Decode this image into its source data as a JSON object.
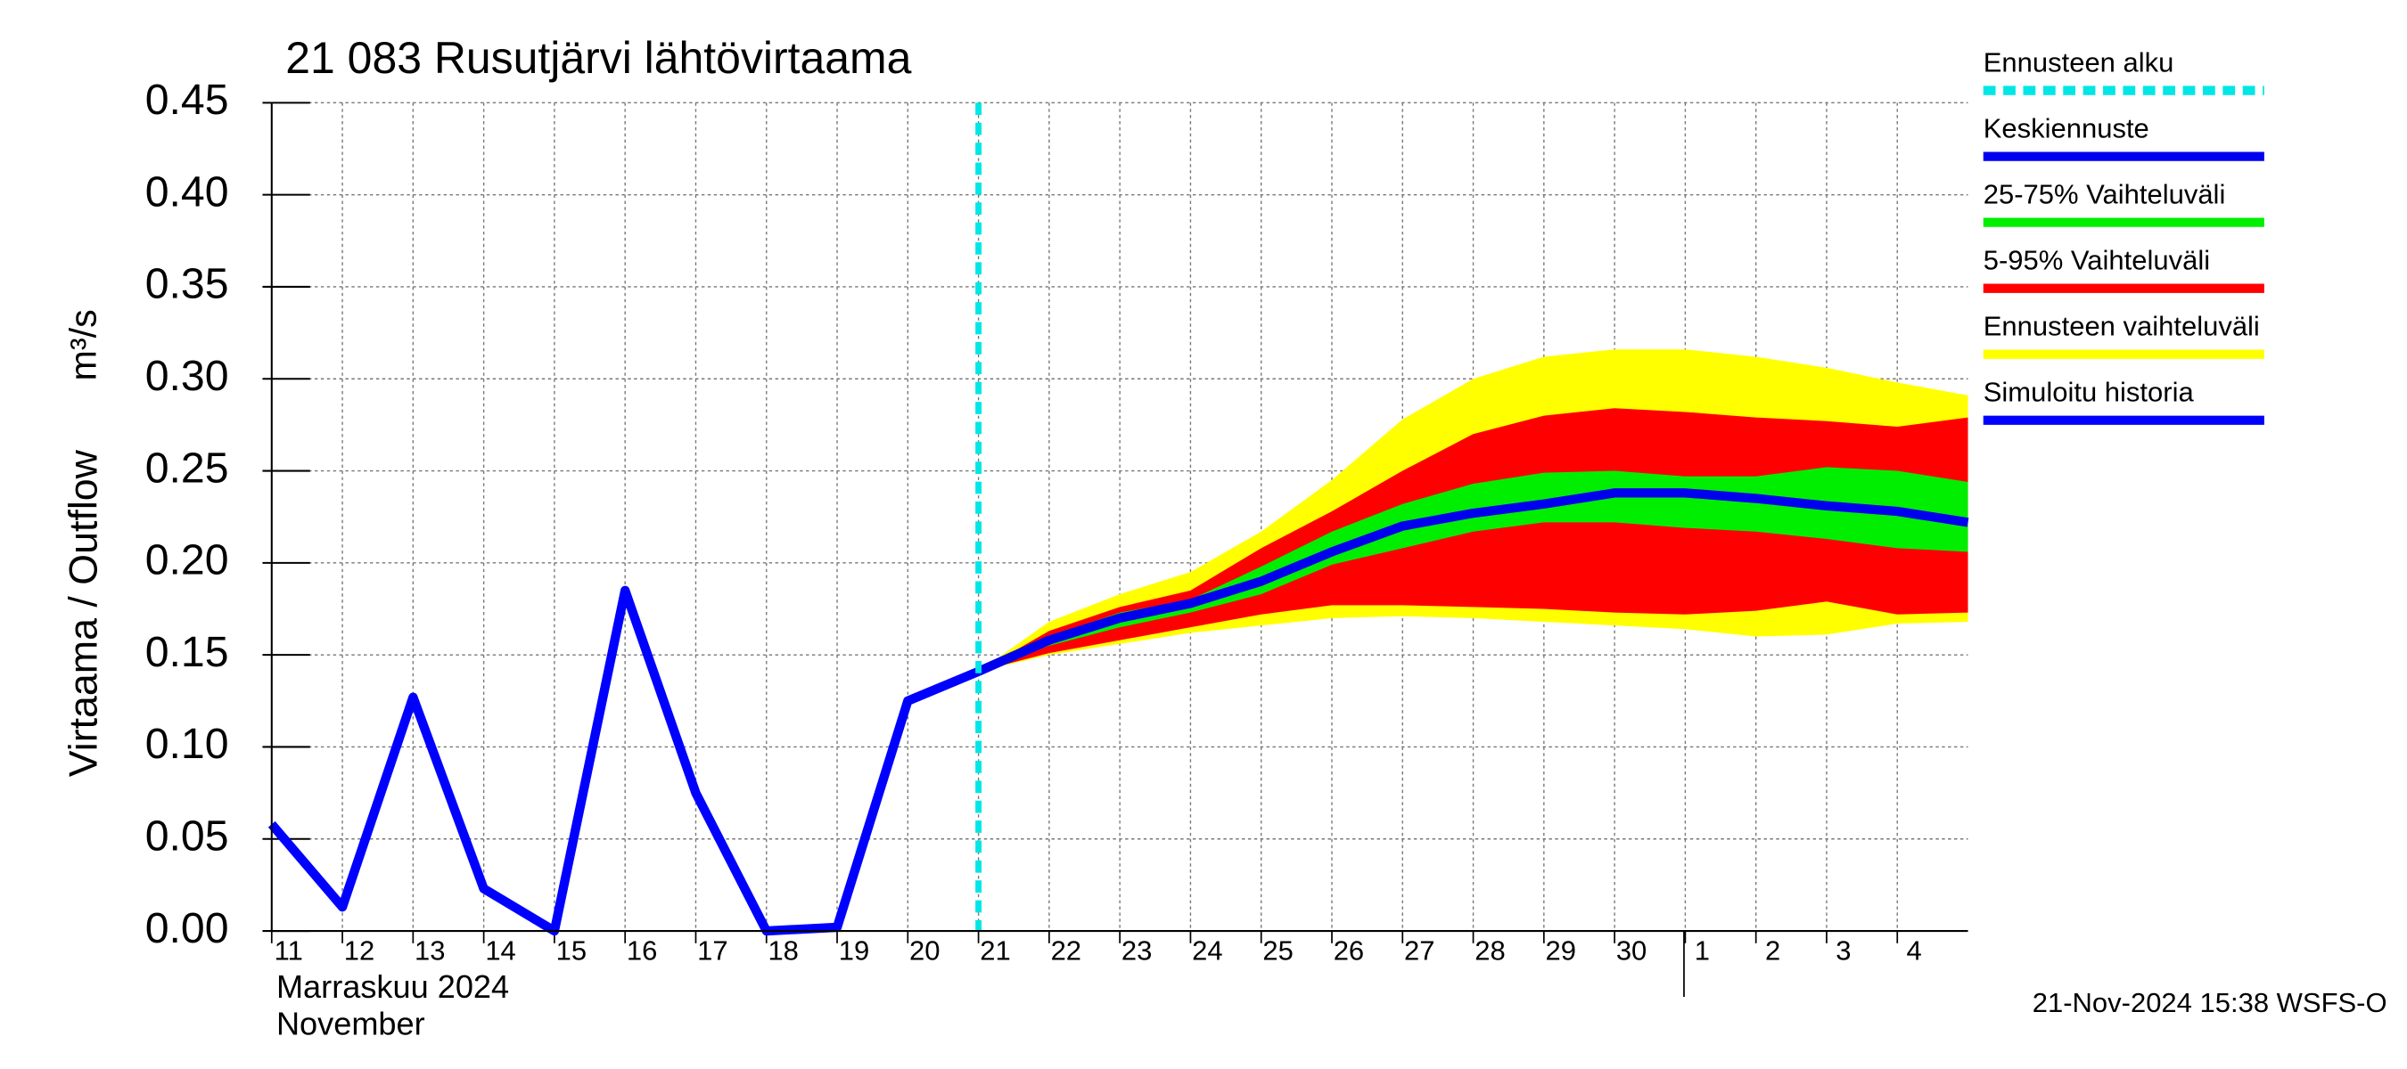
{
  "chart_data": {
    "type": "line",
    "title": "21 083 Rusutjärvi lähtövirtaama",
    "y_label": "Virtaama / Outflow",
    "y_unit": "m³/s",
    "x_label_fi": "Marraskuu 2024",
    "x_label_en": "November",
    "footer": "21-Nov-2024 15:38 WSFS-O",
    "x": [
      "2024-11-11",
      "2024-11-12",
      "2024-11-13",
      "2024-11-14",
      "2024-11-15",
      "2024-11-16",
      "2024-11-17",
      "2024-11-18",
      "2024-11-19",
      "2024-11-20",
      "2024-11-21",
      "2024-11-22",
      "2024-11-23",
      "2024-11-24",
      "2024-11-25",
      "2024-11-26",
      "2024-11-27",
      "2024-11-28",
      "2024-11-29",
      "2024-11-30",
      "2024-12-01",
      "2024-12-02",
      "2024-12-03",
      "2024-12-04",
      "2024-12-05"
    ],
    "xlim": [
      "2024-11-11",
      "2024-12-05"
    ],
    "xticks": [
      {
        "value": "2024-11-11",
        "label": "11"
      },
      {
        "value": "2024-11-12",
        "label": "12"
      },
      {
        "value": "2024-11-13",
        "label": "13"
      },
      {
        "value": "2024-11-14",
        "label": "14"
      },
      {
        "value": "2024-11-15",
        "label": "15"
      },
      {
        "value": "2024-11-16",
        "label": "16"
      },
      {
        "value": "2024-11-17",
        "label": "17"
      },
      {
        "value": "2024-11-18",
        "label": "18"
      },
      {
        "value": "2024-11-19",
        "label": "19"
      },
      {
        "value": "2024-11-20",
        "label": "20"
      },
      {
        "value": "2024-11-21",
        "label": "21"
      },
      {
        "value": "2024-11-22",
        "label": "22"
      },
      {
        "value": "2024-11-23",
        "label": "23"
      },
      {
        "value": "2024-11-24",
        "label": "24"
      },
      {
        "value": "2024-11-25",
        "label": "25"
      },
      {
        "value": "2024-11-26",
        "label": "26"
      },
      {
        "value": "2024-11-27",
        "label": "27"
      },
      {
        "value": "2024-11-28",
        "label": "28"
      },
      {
        "value": "2024-11-29",
        "label": "29"
      },
      {
        "value": "2024-11-30",
        "label": "30"
      },
      {
        "value": "2024-12-01",
        "label": "1"
      },
      {
        "value": "2024-12-02",
        "label": "2"
      },
      {
        "value": "2024-12-03",
        "label": "3"
      },
      {
        "value": "2024-12-04",
        "label": "4"
      }
    ],
    "ylim": [
      0,
      0.45
    ],
    "yticks": [
      {
        "value": 0,
        "label": "0.00"
      },
      {
        "value": 0.05,
        "label": "0.05"
      },
      {
        "value": 0.1,
        "label": "0.10"
      },
      {
        "value": 0.15,
        "label": "0.15"
      },
      {
        "value": 0.2,
        "label": "0.20"
      },
      {
        "value": 0.25,
        "label": "0.25"
      },
      {
        "value": 0.3,
        "label": "0.30"
      },
      {
        "value": 0.35,
        "label": "0.35"
      },
      {
        "value": 0.4,
        "label": "0.40"
      },
      {
        "value": 0.45,
        "label": "0.45"
      }
    ],
    "grid": true,
    "forecast_start": {
      "name": "Ennusteen alku",
      "color": "#00e6e6",
      "x": "2024-11-21"
    },
    "series": [
      {
        "name": "Keskiennuste",
        "color": "#0000ee",
        "values": [
          null,
          null,
          null,
          null,
          null,
          null,
          null,
          null,
          null,
          null,
          0.141,
          0.158,
          0.17,
          0.178,
          0.19,
          0.206,
          0.22,
          0.227,
          0.232,
          0.238,
          0.238,
          0.235,
          0.231,
          0.228,
          0.222
        ]
      },
      {
        "name": "25-75% Vaihteluväli",
        "color": "#00ee00",
        "band": true,
        "lower": [
          null,
          null,
          null,
          null,
          null,
          null,
          null,
          null,
          null,
          null,
          0.141,
          0.155,
          0.165,
          0.173,
          0.183,
          0.199,
          0.208,
          0.217,
          0.222,
          0.222,
          0.219,
          0.217,
          0.213,
          0.208,
          0.206
        ],
        "upper": [
          null,
          null,
          null,
          null,
          null,
          null,
          null,
          null,
          null,
          null,
          0.141,
          0.16,
          0.173,
          0.18,
          0.198,
          0.217,
          0.232,
          0.243,
          0.249,
          0.25,
          0.247,
          0.247,
          0.252,
          0.25,
          0.244
        ]
      },
      {
        "name": "5-95% Vaihteluväli",
        "color": "#ff0000",
        "band": true,
        "lower": [
          null,
          null,
          null,
          null,
          null,
          null,
          null,
          null,
          null,
          null,
          0.141,
          0.151,
          0.158,
          0.165,
          0.172,
          0.177,
          0.177,
          0.176,
          0.175,
          0.173,
          0.172,
          0.174,
          0.179,
          0.172,
          0.173
        ],
        "upper": [
          null,
          null,
          null,
          null,
          null,
          null,
          null,
          null,
          null,
          null,
          0.141,
          0.163,
          0.176,
          0.185,
          0.208,
          0.228,
          0.25,
          0.27,
          0.28,
          0.284,
          0.282,
          0.279,
          0.277,
          0.274,
          0.279
        ]
      },
      {
        "name": "Ennusteen vaihteluväli",
        "color": "#ffff00",
        "band": true,
        "lower": [
          null,
          null,
          null,
          null,
          null,
          null,
          null,
          null,
          null,
          null,
          0.141,
          0.15,
          0.156,
          0.162,
          0.166,
          0.17,
          0.171,
          0.17,
          0.168,
          0.166,
          0.164,
          0.16,
          0.161,
          0.167,
          0.168
        ],
        "upper": [
          null,
          null,
          null,
          null,
          null,
          null,
          null,
          null,
          null,
          null,
          0.141,
          0.168,
          0.183,
          0.195,
          0.217,
          0.245,
          0.278,
          0.3,
          0.312,
          0.316,
          0.316,
          0.312,
          0.306,
          0.298,
          0.291
        ]
      },
      {
        "name": "Simuloitu historia",
        "color": "#0000ff",
        "values": [
          0.058,
          0.013,
          0.127,
          0.023,
          0.0,
          0.185,
          0.075,
          0.0,
          0.002,
          0.125,
          0.141,
          null,
          null,
          null,
          null,
          null,
          null,
          null,
          null,
          null,
          null,
          null,
          null,
          null,
          null
        ]
      }
    ]
  }
}
